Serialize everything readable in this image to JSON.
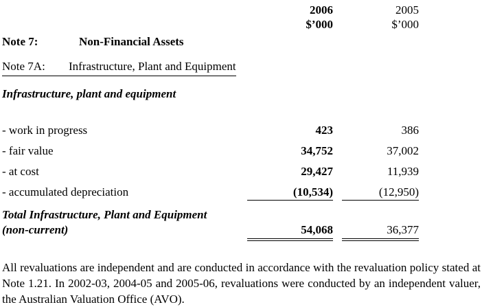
{
  "page": {
    "background": "#ffffff",
    "ink": "#000000"
  },
  "statement": {
    "columns": [
      {
        "year": "2006",
        "unit": "$’000"
      },
      {
        "year": "2005",
        "unit": "$’000"
      }
    ],
    "note_heading": {
      "label": "Note 7:",
      "title": "Non-Financial Assets"
    },
    "subnote_heading": {
      "label": "Note 7A:",
      "title": "Infrastructure, Plant and Equipment"
    },
    "section_title": "Infrastructure, plant and equipment",
    "rows": [
      {
        "label": "- work in progress",
        "amount_2006": "423",
        "amount_2005": "386"
      },
      {
        "label": "- fair value",
        "amount_2006": "34,752",
        "amount_2005": "37,002"
      },
      {
        "label": "- at cost",
        "amount_2006": "29,427",
        "amount_2005": "11,939"
      },
      {
        "label": "- accumulated depreciation",
        "amount_2006": "(10,534)",
        "amount_2005": "(12,950)"
      }
    ],
    "total": {
      "label_line1": "Total Infrastructure, Plant and Equipment",
      "label_line2": "(non-current)",
      "amount_2006": "54,068",
      "amount_2005": "36,377"
    }
  },
  "footnote": {
    "text": "All revaluations are independent and are conducted in accordance with the revaluation policy stated at Note 1.21.  In 2002-03, 2004-05 and 2005-06, revaluations were conducted by an independent valuer, the Australian Valuation Office (AVO)."
  }
}
